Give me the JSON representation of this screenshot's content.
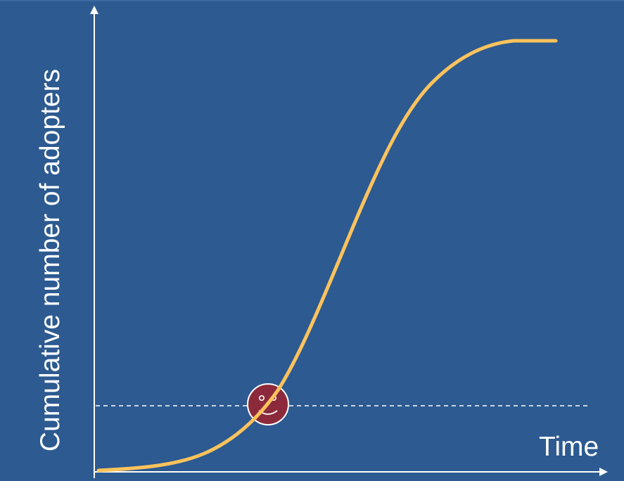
{
  "diagram": {
    "type": "s-curve",
    "y_axis_label": "Cumulative number of adopters",
    "x_axis_label": "Time",
    "colors": {
      "background": "#2c5a91",
      "curve": "#ffc35c",
      "axes": "#ffffff",
      "marker_fill": "#8c2a3c",
      "marker_stroke": "#ffffff",
      "reference_line": "#ffffff"
    },
    "marker": {
      "icon": "smiley-face-icon"
    }
  }
}
